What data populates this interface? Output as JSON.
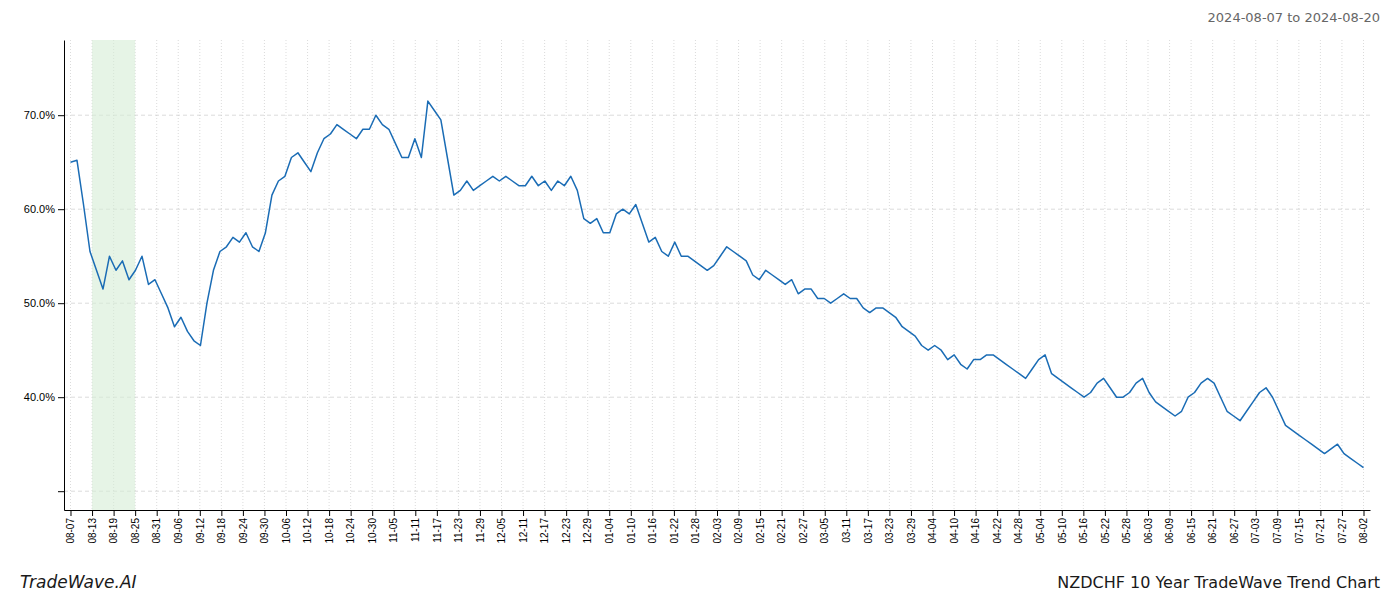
{
  "chart_data": {
    "type": "line",
    "title": "NZDCHF 10 Year TradeWave Trend Chart",
    "subtitle": "2024-08-07 to 2024-08-20",
    "annotations": [
      {
        "text": "TradeWave.AI"
      }
    ],
    "color": "#1a6cb5",
    "grid": true,
    "x": [
      0,
      1,
      2,
      3,
      4,
      5,
      6,
      7,
      8,
      9,
      10,
      11,
      12,
      13,
      14,
      15,
      16,
      17,
      18,
      19,
      20,
      21,
      22,
      23,
      24,
      25,
      26,
      27,
      28,
      29,
      30,
      31,
      32,
      33,
      34,
      35,
      36,
      37,
      38,
      39,
      40,
      41,
      42,
      43,
      44,
      45,
      46,
      47,
      48,
      49,
      50,
      51,
      52,
      53,
      54,
      55,
      56,
      57,
      58,
      59,
      60,
      61,
      62,
      63,
      64,
      65,
      66,
      67,
      68,
      69,
      70,
      71,
      72,
      73,
      74,
      75,
      76,
      77,
      78,
      79,
      80,
      81,
      82,
      83,
      84,
      85,
      86,
      87,
      88,
      89,
      90,
      91,
      92,
      93,
      94,
      95,
      96,
      97,
      98,
      99,
      100,
      101,
      102,
      103,
      104,
      105,
      106,
      107,
      108,
      109,
      110,
      111,
      112,
      113,
      114,
      115,
      116,
      117,
      118,
      119,
      120,
      121,
      122,
      123,
      124,
      125,
      126,
      127,
      128,
      129,
      130,
      131,
      132,
      133,
      134,
      135,
      136,
      137,
      138,
      139,
      140,
      141,
      142,
      143,
      144,
      145,
      146,
      147,
      148,
      149,
      150,
      151,
      152,
      153,
      154,
      155,
      156,
      157,
      158,
      159,
      160,
      161,
      162,
      163,
      164,
      165,
      166,
      167,
      168,
      169,
      170,
      171,
      172,
      173,
      174,
      175,
      176,
      177,
      178,
      179,
      180,
      181,
      182,
      183,
      184,
      185,
      186,
      187,
      188,
      189,
      190,
      191,
      192,
      193,
      194,
      195,
      196,
      197,
      198,
      199
    ],
    "values": [
      65.0,
      65.2,
      60.5,
      55.5,
      53.5,
      51.5,
      55.0,
      53.5,
      54.5,
      52.5,
      53.5,
      55.0,
      52.0,
      52.5,
      51.0,
      49.5,
      47.5,
      48.5,
      47.0,
      46.0,
      45.5,
      50.0,
      53.5,
      55.5,
      56.0,
      57.0,
      56.5,
      57.5,
      56.0,
      55.5,
      57.5,
      61.5,
      63.0,
      63.5,
      65.5,
      66.0,
      65.0,
      64.0,
      66.0,
      67.5,
      68.0,
      69.0,
      68.5,
      68.0,
      67.5,
      68.5,
      68.5,
      70.0,
      69.0,
      68.5,
      67.0,
      65.5,
      65.5,
      67.5,
      65.5,
      71.5,
      70.5,
      69.5,
      65.5,
      61.5,
      62.0,
      63.0,
      62.0,
      62.5,
      63.0,
      63.5,
      63.0,
      63.5,
      63.0,
      62.5,
      62.5,
      63.5,
      62.5,
      63.0,
      62.0,
      63.0,
      62.5,
      63.5,
      62.0,
      59.0,
      58.5,
      59.0,
      57.5,
      57.5,
      59.5,
      60.0,
      59.5,
      60.5,
      58.5,
      56.5,
      57.0,
      55.5,
      55.0,
      56.5,
      55.0,
      55.0,
      54.5,
      54.0,
      53.5,
      54.0,
      55.0,
      56.0,
      55.5,
      55.0,
      54.5,
      53.0,
      52.5,
      53.5,
      53.0,
      52.5,
      52.0,
      52.5,
      51.0,
      51.5,
      51.5,
      50.5,
      50.5,
      50.0,
      50.5,
      51.0,
      50.5,
      50.5,
      49.5,
      49.0,
      49.5,
      49.5,
      49.0,
      48.5,
      47.5,
      47.0,
      46.5,
      45.5,
      45.0,
      45.5,
      45.0,
      44.0,
      44.5,
      43.5,
      43.0,
      44.0,
      44.0,
      44.5,
      44.5,
      44.0,
      43.5,
      43.0,
      42.5,
      42.0,
      43.0,
      44.0,
      44.5,
      42.5,
      42.0,
      41.5,
      41.0,
      40.5,
      40.0,
      40.5,
      41.5,
      42.0,
      41.0,
      40.0,
      40.0,
      40.5,
      41.5,
      42.0,
      40.5,
      39.5,
      39.0,
      38.5,
      38.0,
      38.5,
      40.0,
      40.5,
      41.5,
      42.0,
      41.5,
      40.0,
      38.5,
      38.0,
      37.5,
      38.5,
      39.5,
      40.5,
      41.0,
      40.0,
      38.5,
      37.0,
      36.5,
      36.0,
      35.5,
      35.0,
      34.5,
      34.0,
      34.5,
      35.0,
      34.0,
      33.5,
      33.0,
      32.5
    ],
    "xlim": [
      -1,
      200
    ],
    "xticks": [
      {
        "value": 0,
        "label": "08-07"
      },
      {
        "value": 3.3167,
        "label": "08-13"
      },
      {
        "value": 6.6333,
        "label": "08-19"
      },
      {
        "value": 9.95,
        "label": "08-25"
      },
      {
        "value": 13.2667,
        "label": "08-31"
      },
      {
        "value": 16.5833,
        "label": "09-06"
      },
      {
        "value": 19.9,
        "label": "09-12"
      },
      {
        "value": 23.2167,
        "label": "09-18"
      },
      {
        "value": 26.5333,
        "label": "09-24"
      },
      {
        "value": 29.85,
        "label": "09-30"
      },
      {
        "value": 33.1667,
        "label": "10-06"
      },
      {
        "value": 36.4833,
        "label": "10-12"
      },
      {
        "value": 39.8,
        "label": "10-18"
      },
      {
        "value": 43.1167,
        "label": "10-24"
      },
      {
        "value": 46.4333,
        "label": "10-30"
      },
      {
        "value": 49.75,
        "label": "11-05"
      },
      {
        "value": 53.0667,
        "label": "11-11"
      },
      {
        "value": 56.3833,
        "label": "11-17"
      },
      {
        "value": 59.7,
        "label": "11-23"
      },
      {
        "value": 63.0167,
        "label": "11-29"
      },
      {
        "value": 66.3333,
        "label": "12-05"
      },
      {
        "value": 69.65,
        "label": "12-11"
      },
      {
        "value": 72.9667,
        "label": "12-17"
      },
      {
        "value": 76.2833,
        "label": "12-23"
      },
      {
        "value": 79.6,
        "label": "12-29"
      },
      {
        "value": 82.9167,
        "label": "01-04"
      },
      {
        "value": 86.2333,
        "label": "01-10"
      },
      {
        "value": 89.55,
        "label": "01-16"
      },
      {
        "value": 92.8667,
        "label": "01-22"
      },
      {
        "value": 96.1833,
        "label": "01-28"
      },
      {
        "value": 99.5,
        "label": "02-03"
      },
      {
        "value": 102.8167,
        "label": "02-09"
      },
      {
        "value": 106.1333,
        "label": "02-15"
      },
      {
        "value": 109.45,
        "label": "02-21"
      },
      {
        "value": 112.7667,
        "label": "02-27"
      },
      {
        "value": 116.0833,
        "label": "03-05"
      },
      {
        "value": 119.4,
        "label": "03-11"
      },
      {
        "value": 122.7167,
        "label": "03-17"
      },
      {
        "value": 126.0333,
        "label": "03-23"
      },
      {
        "value": 129.35,
        "label": "03-29"
      },
      {
        "value": 132.6667,
        "label": "04-04"
      },
      {
        "value": 135.9833,
        "label": "04-10"
      },
      {
        "value": 139.3,
        "label": "04-16"
      },
      {
        "value": 142.6167,
        "label": "04-22"
      },
      {
        "value": 145.9333,
        "label": "04-28"
      },
      {
        "value": 149.25,
        "label": "05-04"
      },
      {
        "value": 152.5667,
        "label": "05-10"
      },
      {
        "value": 155.8833,
        "label": "05-16"
      },
      {
        "value": 159.2,
        "label": "05-22"
      },
      {
        "value": 162.5167,
        "label": "05-28"
      },
      {
        "value": 165.8333,
        "label": "06-03"
      },
      {
        "value": 169.15,
        "label": "06-09"
      },
      {
        "value": 172.4667,
        "label": "06-15"
      },
      {
        "value": 175.7833,
        "label": "06-21"
      },
      {
        "value": 179.1,
        "label": "06-27"
      },
      {
        "value": 182.4167,
        "label": "07-03"
      },
      {
        "value": 185.7333,
        "label": "07-09"
      },
      {
        "value": 189.05,
        "label": "07-15"
      },
      {
        "value": 192.3667,
        "label": "07-21"
      },
      {
        "value": 195.6833,
        "label": "07-27"
      },
      {
        "value": 199,
        "label": "08-02"
      }
    ],
    "ylim": [
      28,
      78
    ],
    "yticks": [
      {
        "value": 30,
        "label": null
      },
      {
        "value": 40,
        "label": "40.0%"
      },
      {
        "value": 50,
        "label": "50.0%"
      },
      {
        "value": 60,
        "label": "60.0%"
      },
      {
        "value": 70,
        "label": "70.0%"
      }
    ],
    "spans": [
      {
        "x": [
          3.3167,
          9.95
        ],
        "color": "#d6edd6"
      }
    ]
  }
}
